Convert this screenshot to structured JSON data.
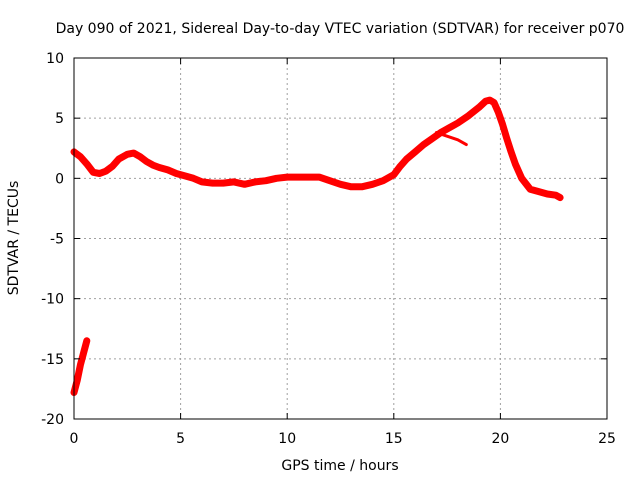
{
  "chart_data": {
    "type": "line",
    "title": "Day 090 of 2021, Sidereal Day-to-day VTEC variation (SDTVAR) for receiver p070",
    "xlabel": "GPS time / hours",
    "ylabel": "SDTVAR / TECUs",
    "xlim": [
      0,
      25
    ],
    "ylim": [
      -20,
      10
    ],
    "xticks": [
      "0",
      "5",
      "10",
      "15",
      "20",
      "25"
    ],
    "yticks": [
      "10",
      "5",
      "0",
      "-5",
      "-10",
      "-15",
      "-20"
    ],
    "grid": true,
    "series": [
      {
        "name": "SDTVAR (start segment)",
        "color": "#ff0000",
        "x": [
          0.0,
          0.15,
          0.3,
          0.45,
          0.6
        ],
        "y": [
          -17.8,
          -16.8,
          -15.5,
          -14.5,
          -13.5
        ]
      },
      {
        "name": "SDTVAR",
        "color": "#ff0000",
        "x": [
          0.0,
          0.3,
          0.6,
          0.9,
          1.2,
          1.5,
          1.8,
          2.1,
          2.5,
          2.8,
          3.1,
          3.4,
          3.7,
          4.0,
          4.4,
          4.8,
          5.2,
          5.6,
          6.0,
          6.5,
          7.0,
          7.5,
          8.0,
          8.5,
          9.0,
          9.5,
          10.0,
          10.5,
          11.0,
          11.5,
          12.0,
          12.5,
          13.0,
          13.5,
          14.0,
          14.5,
          15.0,
          15.3,
          15.6,
          16.0,
          16.4,
          16.8,
          17.2,
          17.6,
          18.0,
          18.5,
          19.0,
          19.3,
          19.5,
          19.7,
          19.9,
          20.1,
          20.3,
          20.5,
          20.7,
          21.0,
          21.4,
          21.8,
          22.2,
          22.6,
          22.8
        ],
        "y": [
          2.2,
          1.8,
          1.2,
          0.5,
          0.4,
          0.6,
          1.0,
          1.6,
          2.0,
          2.1,
          1.8,
          1.4,
          1.1,
          0.9,
          0.7,
          0.4,
          0.2,
          0.0,
          -0.3,
          -0.4,
          -0.4,
          -0.3,
          -0.5,
          -0.3,
          -0.2,
          0.0,
          0.1,
          0.1,
          0.1,
          0.1,
          -0.2,
          -0.5,
          -0.7,
          -0.7,
          -0.5,
          -0.2,
          0.3,
          1.0,
          1.6,
          2.2,
          2.8,
          3.3,
          3.8,
          4.2,
          4.6,
          5.2,
          5.9,
          6.4,
          6.5,
          6.3,
          5.5,
          4.5,
          3.3,
          2.2,
          1.2,
          0.0,
          -0.9,
          -1.1,
          -1.3,
          -1.4,
          -1.6
        ]
      },
      {
        "name": "SDTVAR (branch)",
        "color": "#ff0000",
        "x": [
          17.0,
          17.5,
          18.0,
          18.4
        ],
        "y": [
          3.8,
          3.5,
          3.2,
          2.8
        ]
      }
    ]
  }
}
